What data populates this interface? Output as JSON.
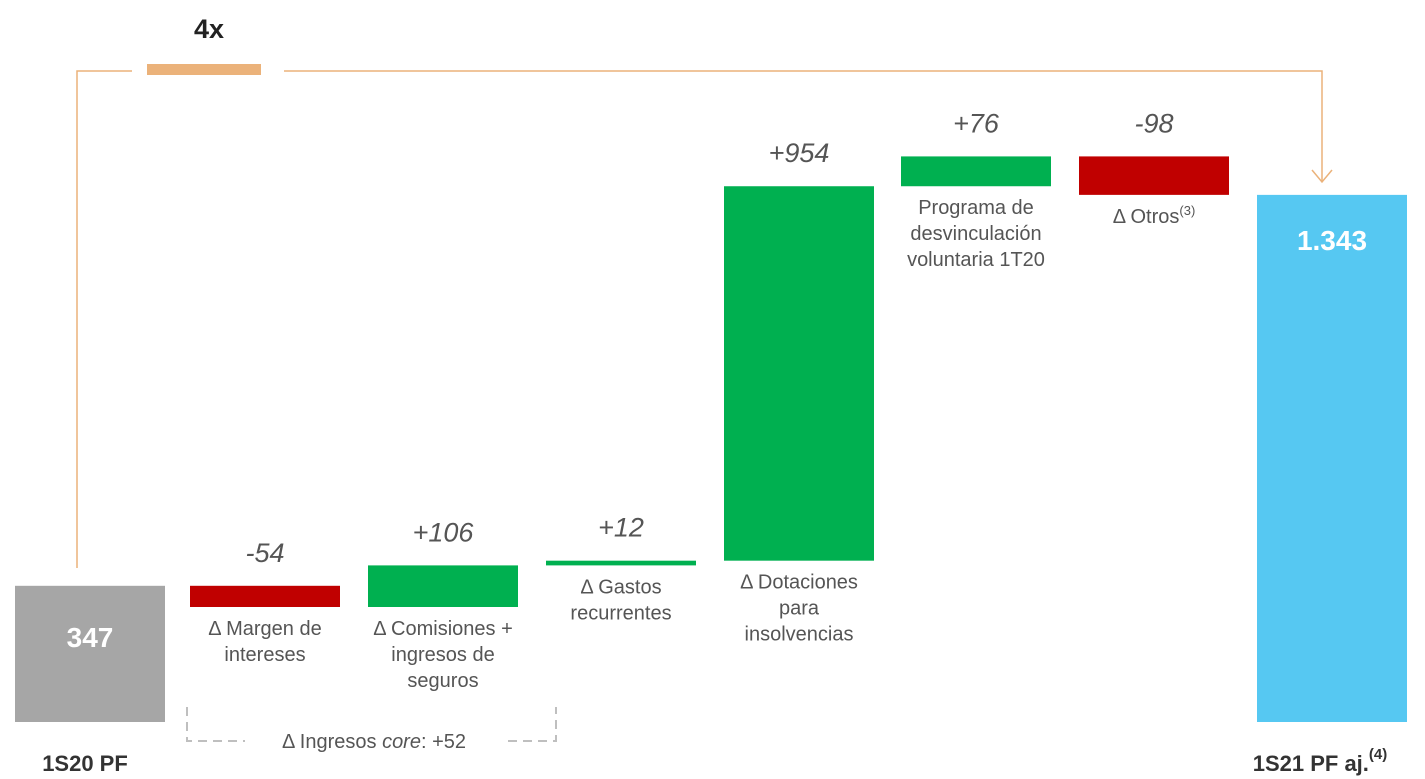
{
  "chart_data": {
    "type": "waterfall",
    "title": "",
    "multiplier": "4x",
    "colors": {
      "total_start": "#a6a6a6",
      "total_end": "#56c8f2",
      "increase": "#00b050",
      "decrease": "#c00000",
      "connector": "#ebb27a",
      "bracket": "#bfbfbf"
    },
    "bars": [
      {
        "id": "start",
        "kind": "total",
        "value": 347,
        "value_label": "347",
        "label_lines": [],
        "bottom_label": "1S20 PF",
        "color_key": "total_start"
      },
      {
        "id": "margen",
        "kind": "delta",
        "value": -54,
        "value_label": "-54",
        "label_lines": [
          "Δ Margen de",
          "intereses"
        ],
        "color_key": "decrease"
      },
      {
        "id": "comisiones",
        "kind": "delta",
        "value": 106,
        "value_label": "+106",
        "label_lines": [
          "Δ Comisiones +",
          "ingresos de",
          "seguros"
        ],
        "color_key": "increase"
      },
      {
        "id": "gastos",
        "kind": "delta",
        "value": 12,
        "value_label": "+12",
        "label_lines": [
          "Δ Gastos",
          "recurrentes"
        ],
        "color_key": "increase"
      },
      {
        "id": "dotaciones",
        "kind": "delta",
        "value": 954,
        "value_label": "+954",
        "label_lines": [
          "Δ Dotaciones",
          "para",
          "insolvencias"
        ],
        "color_key": "increase"
      },
      {
        "id": "programa",
        "kind": "delta",
        "value": 76,
        "value_label": "+76",
        "label_lines": [
          "Programa de",
          "desvinculación",
          "voluntaria 1T20"
        ],
        "color_key": "increase"
      },
      {
        "id": "otros",
        "kind": "delta",
        "value": -98,
        "value_label": "-98",
        "label_lines": [
          "Δ Otros"
        ],
        "label_sup": "(3)",
        "color_key": "decrease"
      },
      {
        "id": "end",
        "kind": "total",
        "value": 1343,
        "value_label": "1.343",
        "label_lines": [],
        "bottom_label": "1S21 PF aj.",
        "bottom_sup": "(4)",
        "color_key": "total_end"
      }
    ],
    "group_bracket": {
      "text_prefix": "Δ Ingresos ",
      "text_italic": "core",
      "text_suffix": ": +52"
    }
  }
}
